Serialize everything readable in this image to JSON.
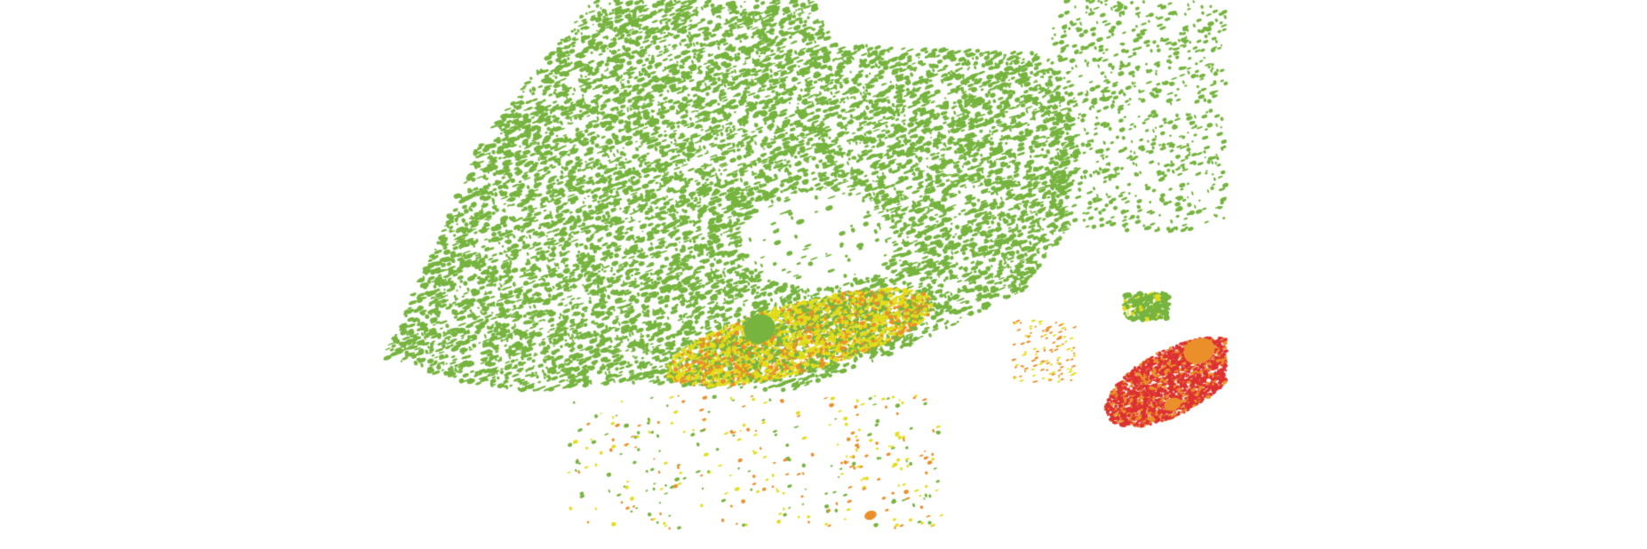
{
  "map": {
    "type": "precipitation-intensity-overlay",
    "colors": {
      "light": "#76b43f",
      "moderate": "#e3dd1c",
      "heavy": "#ea8f2a",
      "very_heavy": "#dd3131",
      "background": "#ffffff"
    }
  }
}
